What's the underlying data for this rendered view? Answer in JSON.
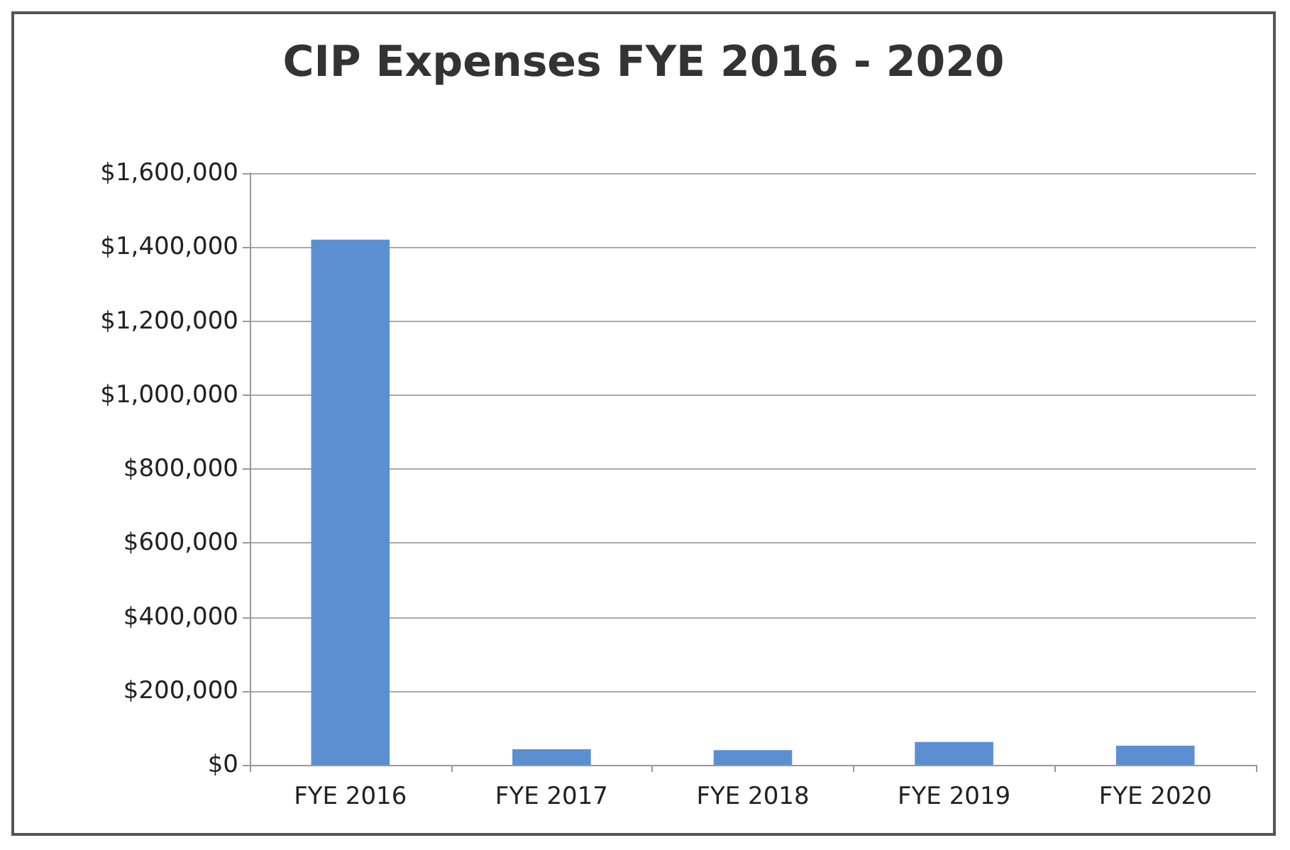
{
  "chart_data": {
    "type": "bar",
    "title": "CIP Expenses FYE 2016 - 2020",
    "categories": [
      "FYE 2016",
      "FYE 2017",
      "FYE 2018",
      "FYE 2019",
      "FYE 2020"
    ],
    "values": [
      1420000,
      42000,
      40000,
      62000,
      52000
    ],
    "color": "#5b8fd2",
    "ylim": [
      0,
      1600000
    ],
    "yticks": [
      {
        "value": 0,
        "label": "$0"
      },
      {
        "value": 200000,
        "label": "$200,000"
      },
      {
        "value": 400000,
        "label": "$400,000"
      },
      {
        "value": 600000,
        "label": "$600,000"
      },
      {
        "value": 800000,
        "label": "$800,000"
      },
      {
        "value": 1000000,
        "label": "$1,000,000"
      },
      {
        "value": 1200000,
        "label": "$1,200,000"
      },
      {
        "value": 1400000,
        "label": "$1,400,000"
      },
      {
        "value": 1600000,
        "label": "$1,600,000"
      }
    ],
    "grid": "y"
  }
}
